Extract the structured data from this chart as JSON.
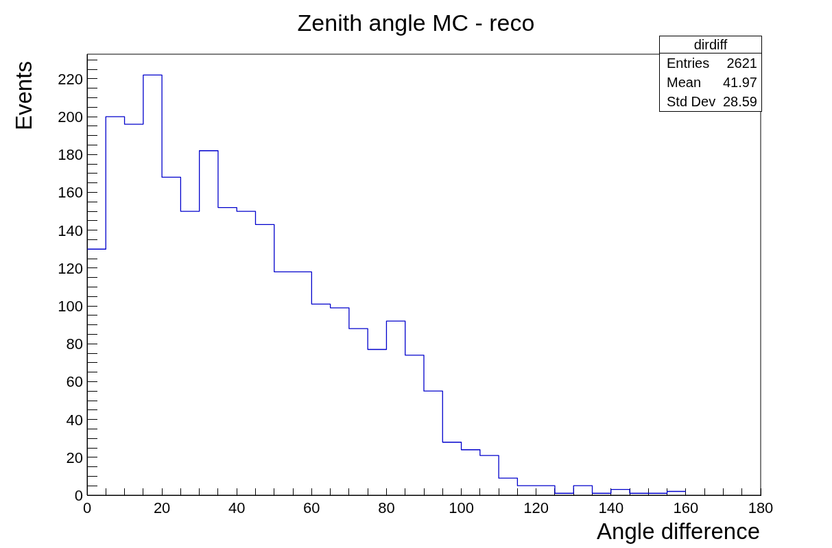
{
  "chart_data": {
    "type": "histogram",
    "title": "Zenith angle MC - reco",
    "xlabel": "Angle difference",
    "ylabel": "Events",
    "bins": [
      0,
      5,
      10,
      15,
      20,
      25,
      30,
      35,
      40,
      45,
      50,
      55,
      60,
      65,
      70,
      75,
      80,
      85,
      90,
      95,
      100,
      105,
      110,
      115,
      120,
      125,
      130,
      135,
      140,
      145,
      150,
      155,
      160
    ],
    "values": [
      130,
      200,
      196,
      222,
      168,
      150,
      182,
      152,
      150,
      143,
      118,
      118,
      101,
      99,
      88,
      77,
      92,
      74,
      55,
      28,
      24,
      21,
      9,
      5,
      5,
      1,
      5,
      1,
      3,
      1,
      1,
      2
    ],
    "color": "#0000cc",
    "grid": false,
    "legend": false,
    "xlim": [
      0,
      180
    ],
    "xticks": [
      0,
      {
        "value": 5,
        "label": null
      },
      {
        "value": 10,
        "label": null
      },
      {
        "value": 15,
        "label": null
      },
      20,
      {
        "value": 25,
        "label": null
      },
      {
        "value": 30,
        "label": null
      },
      {
        "value": 35,
        "label": null
      },
      40,
      {
        "value": 45,
        "label": null
      },
      {
        "value": 50,
        "label": null
      },
      {
        "value": 55,
        "label": null
      },
      60,
      {
        "value": 65,
        "label": null
      },
      {
        "value": 70,
        "label": null
      },
      {
        "value": 75,
        "label": null
      },
      80,
      {
        "value": 85,
        "label": null
      },
      {
        "value": 90,
        "label": null
      },
      {
        "value": 95,
        "label": null
      },
      100,
      {
        "value": 105,
        "label": null
      },
      {
        "value": 110,
        "label": null
      },
      {
        "value": 115,
        "label": null
      },
      120,
      {
        "value": 125,
        "label": null
      },
      {
        "value": 130,
        "label": null
      },
      {
        "value": 135,
        "label": null
      },
      140,
      {
        "value": 145,
        "label": null
      },
      {
        "value": 150,
        "label": null
      },
      {
        "value": 155,
        "label": null
      },
      160,
      {
        "value": 165,
        "label": null
      },
      {
        "value": 170,
        "label": null
      },
      {
        "value": 175,
        "label": null
      },
      180
    ],
    "ylim": [
      0,
      233
    ],
    "yticks": [
      0,
      {
        "value": 5,
        "label": null
      },
      {
        "value": 10,
        "label": null
      },
      {
        "value": 15,
        "label": null
      },
      20,
      {
        "value": 25,
        "label": null
      },
      {
        "value": 30,
        "label": null
      },
      {
        "value": 35,
        "label": null
      },
      40,
      {
        "value": 45,
        "label": null
      },
      {
        "value": 50,
        "label": null
      },
      {
        "value": 55,
        "label": null
      },
      60,
      {
        "value": 65,
        "label": null
      },
      {
        "value": 70,
        "label": null
      },
      {
        "value": 75,
        "label": null
      },
      80,
      {
        "value": 85,
        "label": null
      },
      {
        "value": 90,
        "label": null
      },
      {
        "value": 95,
        "label": null
      },
      100,
      {
        "value": 105,
        "label": null
      },
      {
        "value": 110,
        "label": null
      },
      {
        "value": 115,
        "label": null
      },
      120,
      {
        "value": 125,
        "label": null
      },
      {
        "value": 130,
        "label": null
      },
      {
        "value": 135,
        "label": null
      },
      140,
      {
        "value": 145,
        "label": null
      },
      {
        "value": 150,
        "label": null
      },
      {
        "value": 155,
        "label": null
      },
      160,
      {
        "value": 165,
        "label": null
      },
      {
        "value": 170,
        "label": null
      },
      {
        "value": 175,
        "label": null
      },
      180,
      {
        "value": 185,
        "label": null
      },
      {
        "value": 190,
        "label": null
      },
      {
        "value": 195,
        "label": null
      },
      200,
      {
        "value": 205,
        "label": null
      },
      {
        "value": 210,
        "label": null
      },
      {
        "value": 215,
        "label": null
      },
      220,
      {
        "value": 225,
        "label": null
      },
      {
        "value": 230,
        "label": null
      }
    ],
    "annotations": [
      "dirdiff",
      "Entries",
      "2621",
      "Mean",
      "41.97",
      "Std Dev",
      "28.59"
    ]
  }
}
